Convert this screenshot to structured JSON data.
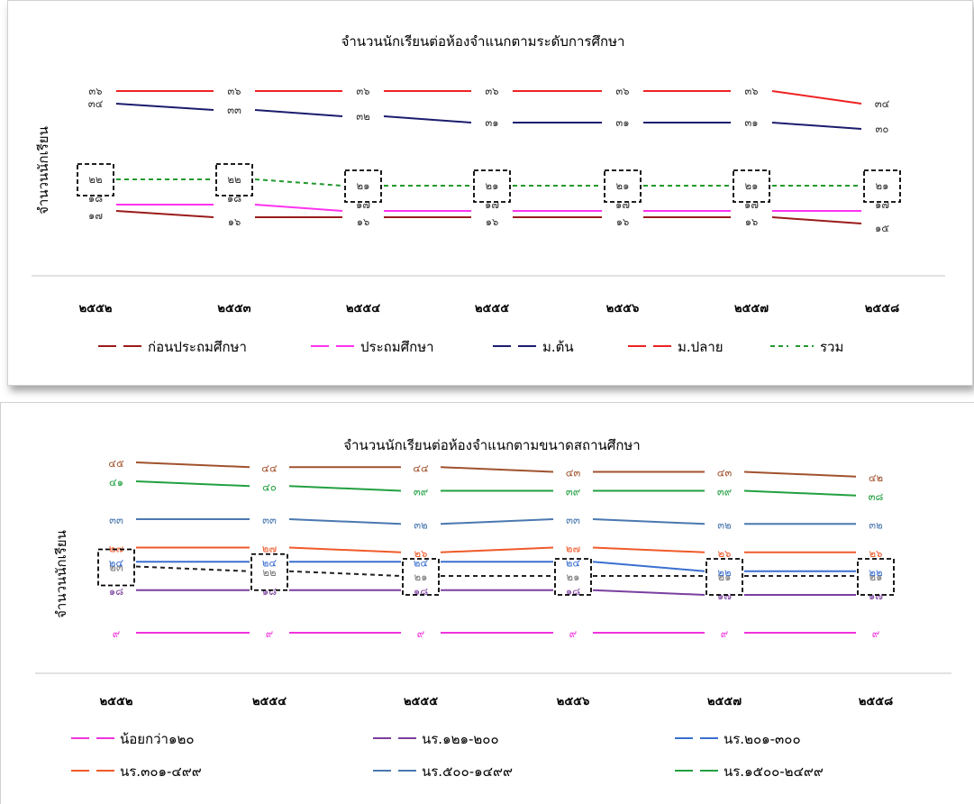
{
  "chart_data": [
    {
      "type": "line",
      "title": "จำนวนนักเรียนต่อห้องจำแนกตามระดับการศึกษา",
      "ylabel": "จำนวนนักเรียน",
      "xlabel": "",
      "categories": [
        "๒๕๕๒",
        "๒๕๕๓",
        "๒๕๕๔",
        "๒๕๕๕",
        "๒๕๕๖",
        "๒๕๕๗",
        "๒๕๕๘"
      ],
      "ylim": [
        12,
        38
      ],
      "legend_position": "bottom",
      "series": [
        {
          "name": "ก่อนประถมศึกษา",
          "color": "#9a1c1c",
          "dash": "solid",
          "values": [
            17,
            16,
            16,
            16,
            16,
            16,
            15
          ],
          "labels": [
            "๑๗",
            "๑๖",
            "๑๖",
            "๑๖",
            "๑๖",
            "๑๖",
            "๑๕"
          ]
        },
        {
          "name": "ประถมศึกษา",
          "color": "#ff33ee",
          "dash": "solid",
          "values": [
            18,
            18,
            17,
            17,
            17,
            17,
            17
          ],
          "labels": [
            "๑๘",
            "๑๘",
            "๑๗",
            "๑๗",
            "๑๗",
            "๑๗",
            "๑๗"
          ]
        },
        {
          "name": "ม.ต้น",
          "color": "#1c1c6e",
          "dash": "solid",
          "values": [
            34,
            33,
            32,
            31,
            31,
            31,
            30
          ],
          "labels": [
            "๓๔",
            "๓๓",
            "๓๒",
            "๓๑",
            "๓๑",
            "๓๑",
            "๓๐"
          ]
        },
        {
          "name": "ม.ปลาย",
          "color": "#ee2222",
          "dash": "solid",
          "values": [
            36,
            36,
            36,
            36,
            36,
            36,
            34
          ],
          "labels": [
            "๓๖",
            "๓๖",
            "๓๖",
            "๓๖",
            "๓๖",
            "๓๖",
            "๓๔"
          ]
        },
        {
          "name": "รวม",
          "color": "#22992e",
          "dash": "dashed",
          "values": [
            22,
            22,
            21,
            21,
            21,
            21,
            21
          ],
          "labels": [
            "๒๒",
            "๒๒",
            "๒๑",
            "๒๑",
            "๒๑",
            "๒๑",
            "๒๑"
          ]
        }
      ],
      "highlight_series": "รวม"
    },
    {
      "type": "line",
      "title": "จำนวนนักเรียนต่อห้องจำแนกตามขนาดสถานศึกษา",
      "ylabel": "จำนวนนักเรียน",
      "xlabel": "",
      "categories": [
        "๒๕๕๒",
        "๒๕๕๔",
        "๒๕๕๕",
        "๒๕๕๖",
        "๒๕๕๗",
        "๒๕๕๘"
      ],
      "ylim": [
        5,
        47
      ],
      "legend_position": "bottom",
      "series": [
        {
          "name": "น้อยกว่า๑๒๐",
          "color": "#ee33dd",
          "dash": "solid",
          "values": [
            9,
            9,
            9,
            9,
            9,
            9
          ],
          "labels": [
            "๙",
            "๙",
            "๙",
            "๙",
            "๙",
            "๙"
          ]
        },
        {
          "name": "นร.๑๒๑-๒๐๐",
          "color": "#7a3fa0",
          "dash": "solid",
          "values": [
            18,
            18,
            18,
            18,
            17,
            17
          ],
          "labels": [
            "๑๘",
            "๑๘",
            "๑๘",
            "๑๘",
            "๑๗",
            "๑๗"
          ]
        },
        {
          "name": "นร.๒๐๑-๓๐๐",
          "color": "#3a6fd0",
          "dash": "solid",
          "values": [
            24,
            24,
            24,
            24,
            22,
            22
          ],
          "labels": [
            "๒๔",
            "๒๔",
            "๒๔",
            "๒๔",
            "๒๒",
            "๒๒"
          ]
        },
        {
          "name": "นร.๓๐๑-๔๙๙",
          "color": "#f05a2a",
          "dash": "solid",
          "values": [
            27,
            27,
            26,
            27,
            26,
            26
          ],
          "labels": [
            "๒๗",
            "๒๗",
            "๒๖",
            "๒๗",
            "๒๖",
            "๒๖"
          ]
        },
        {
          "name": "นร.๕๐๐-๑๔๙๙",
          "color": "#4a78b0",
          "dash": "solid",
          "values": [
            33,
            33,
            32,
            33,
            32,
            32
          ],
          "labels": [
            "๓๓",
            "๓๓",
            "๓๒",
            "๓๓",
            "๓๒",
            "๓๒"
          ]
        },
        {
          "name": "นร.๑๕๐๐-๒๔๙๙",
          "color": "#22a040",
          "dash": "solid",
          "values": [
            41,
            40,
            39,
            39,
            39,
            38
          ],
          "labels": [
            "๔๑",
            "๔๐",
            "๓๙",
            "๓๙",
            "๓๙",
            "๓๘"
          ]
        },
        {
          "name": "",
          "color": "#a0522d",
          "dash": "solid",
          "values": [
            45,
            44,
            44,
            43,
            43,
            42
          ],
          "labels": [
            "๔๕",
            "๔๔",
            "๔๔",
            "๔๓",
            "๔๓",
            "๔๒"
          ]
        },
        {
          "name": "",
          "color": "#222222",
          "dash": "dashed",
          "values": [
            23,
            22,
            21,
            21,
            21,
            21
          ],
          "labels": [
            "๒๓",
            "๒๒",
            "๒๑",
            "๒๑",
            "๒๑",
            "๒๑"
          ]
        }
      ],
      "highlight_series_index": 7
    }
  ]
}
